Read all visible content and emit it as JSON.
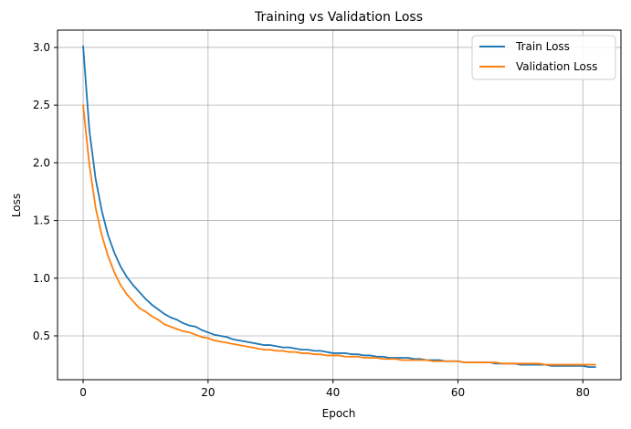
{
  "chart_data": {
    "type": "line",
    "title": "Training vs Validation Loss",
    "xlabel": "Epoch",
    "ylabel": "Loss",
    "xlim": [
      -4.1,
      86.1
    ],
    "ylim": [
      0.12,
      3.15
    ],
    "xticks": [
      0,
      20,
      40,
      60,
      80
    ],
    "yticks": [
      0.5,
      1.0,
      1.5,
      2.0,
      2.5,
      3.0
    ],
    "xtick_labels": [
      "0",
      "20",
      "40",
      "60",
      "80"
    ],
    "ytick_labels": [
      "0.5",
      "1.0",
      "1.5",
      "2.0",
      "2.5",
      "3.0"
    ],
    "grid": true,
    "legend_position": "top-right",
    "series": [
      {
        "name": "Train Loss",
        "color": "#1f77b4",
        "x": [
          0,
          1,
          2,
          3,
          4,
          5,
          6,
          7,
          8,
          9,
          10,
          11,
          12,
          13,
          14,
          15,
          16,
          17,
          18,
          19,
          20,
          21,
          22,
          23,
          24,
          25,
          26,
          27,
          28,
          29,
          30,
          31,
          32,
          33,
          34,
          35,
          36,
          37,
          38,
          39,
          40,
          41,
          42,
          43,
          44,
          45,
          46,
          47,
          48,
          49,
          50,
          51,
          52,
          53,
          54,
          55,
          56,
          57,
          58,
          59,
          60,
          61,
          62,
          63,
          64,
          65,
          66,
          67,
          68,
          69,
          70,
          71,
          72,
          73,
          74,
          75,
          76,
          77,
          78,
          79,
          80,
          81,
          82
        ],
        "values": [
          3.01,
          2.28,
          1.86,
          1.58,
          1.37,
          1.22,
          1.1,
          1.01,
          0.94,
          0.88,
          0.82,
          0.77,
          0.73,
          0.69,
          0.66,
          0.64,
          0.61,
          0.59,
          0.58,
          0.55,
          0.53,
          0.51,
          0.5,
          0.49,
          0.47,
          0.46,
          0.45,
          0.44,
          0.43,
          0.42,
          0.42,
          0.41,
          0.4,
          0.4,
          0.39,
          0.38,
          0.38,
          0.37,
          0.37,
          0.36,
          0.35,
          0.35,
          0.35,
          0.34,
          0.34,
          0.33,
          0.33,
          0.32,
          0.32,
          0.31,
          0.31,
          0.31,
          0.31,
          0.3,
          0.3,
          0.29,
          0.29,
          0.29,
          0.28,
          0.28,
          0.28,
          0.27,
          0.27,
          0.27,
          0.27,
          0.27,
          0.26,
          0.26,
          0.26,
          0.26,
          0.25,
          0.25,
          0.25,
          0.25,
          0.25,
          0.24,
          0.24,
          0.24,
          0.24,
          0.24,
          0.24,
          0.23,
          0.23
        ]
      },
      {
        "name": "Validation Loss",
        "color": "#ff7f0e",
        "x": [
          0,
          1,
          2,
          3,
          4,
          5,
          6,
          7,
          8,
          9,
          10,
          11,
          12,
          13,
          14,
          15,
          16,
          17,
          18,
          19,
          20,
          21,
          22,
          23,
          24,
          25,
          26,
          27,
          28,
          29,
          30,
          31,
          32,
          33,
          34,
          35,
          36,
          37,
          38,
          39,
          40,
          41,
          42,
          43,
          44,
          45,
          46,
          47,
          48,
          49,
          50,
          51,
          52,
          53,
          54,
          55,
          56,
          57,
          58,
          59,
          60,
          61,
          62,
          63,
          64,
          65,
          66,
          67,
          68,
          69,
          70,
          71,
          72,
          73,
          74,
          75,
          76,
          77,
          78,
          79,
          80,
          81,
          82
        ],
        "values": [
          2.5,
          1.98,
          1.61,
          1.37,
          1.19,
          1.05,
          0.94,
          0.86,
          0.8,
          0.74,
          0.71,
          0.67,
          0.64,
          0.6,
          0.58,
          0.56,
          0.54,
          0.53,
          0.51,
          0.49,
          0.48,
          0.46,
          0.45,
          0.44,
          0.43,
          0.42,
          0.41,
          0.4,
          0.39,
          0.38,
          0.38,
          0.37,
          0.37,
          0.36,
          0.36,
          0.35,
          0.35,
          0.34,
          0.34,
          0.33,
          0.33,
          0.33,
          0.32,
          0.32,
          0.32,
          0.31,
          0.31,
          0.31,
          0.3,
          0.3,
          0.3,
          0.29,
          0.29,
          0.29,
          0.29,
          0.29,
          0.28,
          0.28,
          0.28,
          0.28,
          0.28,
          0.27,
          0.27,
          0.27,
          0.27,
          0.27,
          0.27,
          0.26,
          0.26,
          0.26,
          0.26,
          0.26,
          0.26,
          0.26,
          0.25,
          0.25,
          0.25,
          0.25,
          0.25,
          0.25,
          0.25,
          0.25,
          0.25
        ]
      }
    ]
  }
}
